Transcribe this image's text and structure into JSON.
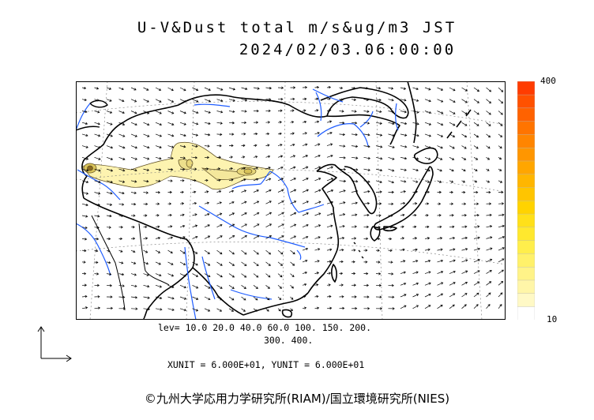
{
  "title": {
    "line1": "U-V&Dust total m/s&ug/m3 JST",
    "line2": "2024/02/03.06:00:00"
  },
  "colorbar": {
    "max_label": "400",
    "min_label": "10",
    "colors": [
      "#ffffff",
      "#fff9c6",
      "#fff6a8",
      "#fff388",
      "#fff16a",
      "#ffee4c",
      "#ffe82e",
      "#ffe019",
      "#ffd300",
      "#ffc500",
      "#ffb600",
      "#ffa600",
      "#ff9600",
      "#ff8500",
      "#ff7400",
      "#ff6200",
      "#ff5100",
      "#ff3c00"
    ]
  },
  "contour_levels": {
    "line1": "lev= 10.0 20.0 40.0 60.0 100. 150. 200.",
    "line2": "300. 400."
  },
  "units": "XUNIT = 6.000E+01, YUNIT = 6.000E+01",
  "credit": "©九州大学応用力学研究所(RIAM)/国立環境研究所(NIES)",
  "map_colors": {
    "coastline": "#000000",
    "rivers": "#1e5cff",
    "borders": "#000000",
    "grid": "#777777",
    "dust_fill": "#fdf3b0",
    "dust_contour": "#5a4a20",
    "wind_vectors": "#000000"
  }
}
